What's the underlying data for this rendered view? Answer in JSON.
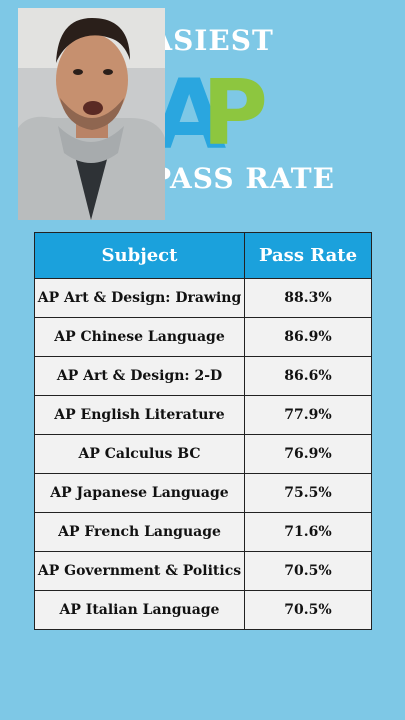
{
  "title": {
    "top": "EASIEST",
    "logo": "AP",
    "bottom": "PASS RATE"
  },
  "table": {
    "headers": [
      "Subject",
      "Pass Rate"
    ],
    "rows": [
      {
        "subject": "AP Art & Design: Drawing",
        "rate": "88.3%"
      },
      {
        "subject": "AP Chinese Language",
        "rate": "86.9%"
      },
      {
        "subject": "AP Art & Design: 2-D",
        "rate": "86.6%"
      },
      {
        "subject": "AP English Literature",
        "rate": "77.9%"
      },
      {
        "subject": "AP Calculus BC",
        "rate": "76.9%"
      },
      {
        "subject": "AP Japanese Language",
        "rate": "75.5%"
      },
      {
        "subject": "AP French Language",
        "rate": "71.6%"
      },
      {
        "subject": "AP Government & Politics",
        "rate": "70.5%"
      },
      {
        "subject": "AP Italian Language",
        "rate": "70.5%"
      }
    ]
  },
  "colors": {
    "background": "#7ec8e6",
    "header": "#1ba1dc",
    "logo_a": "#2aa6df",
    "logo_p": "#8dc63f"
  }
}
